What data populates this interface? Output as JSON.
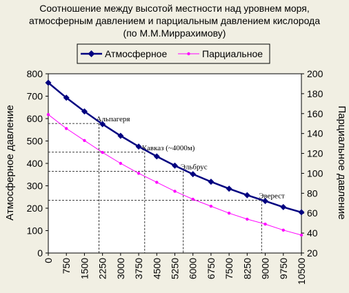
{
  "chart_data": {
    "type": "line",
    "title": "Соотношение между высотой местности над уровнем моря,",
    "subtitle_line2": "атмосферным давлением и парциальным давлением кислорода",
    "subtitle_line3": "(по М.М.Миррахимову)",
    "ylabel_left": "Атмосферное давление",
    "ylabel_right": "Парциальное давление",
    "xlabel": "",
    "x_ticks": [
      "0",
      "750",
      "1500",
      "2250",
      "3000",
      "3750",
      "4500",
      "5250",
      "6000",
      "6750",
      "7500",
      "8250",
      "9000",
      "9750",
      "10500"
    ],
    "y_left_ticks": [
      "0",
      "100",
      "200",
      "300",
      "400",
      "500",
      "600",
      "700",
      "800"
    ],
    "y_right_ticks": [
      "20",
      "40",
      "60",
      "80",
      "100",
      "120",
      "140",
      "160",
      "180",
      "200"
    ],
    "xlim": [
      0,
      10500
    ],
    "ylim_left": [
      0,
      800
    ],
    "ylim_right": [
      20,
      200
    ],
    "x": [
      0,
      750,
      1500,
      2250,
      3000,
      3750,
      4500,
      5250,
      6000,
      6750,
      7500,
      8250,
      9000,
      9750,
      10500
    ],
    "series": [
      {
        "name": "Атмосферное",
        "axis": "left",
        "color": "#000080",
        "marker": "diamond",
        "values": [
          760,
          693,
          632,
          575,
          523,
          475,
          431,
          390,
          352,
          318,
          287,
          258,
          232,
          205,
          182
        ]
      },
      {
        "name": "Парциальное",
        "axis": "right",
        "color": "#FF00FF",
        "marker": "dot",
        "values": [
          159,
          145,
          133,
          121,
          110,
          100,
          91,
          82,
          74,
          67,
          60,
          54,
          49,
          43,
          38
        ]
      }
    ],
    "annotations": [
      {
        "text": "Альпагеря",
        "x": 2100,
        "y": 578
      },
      {
        "text": "Кавказ (~4000м)",
        "x": 4000,
        "y": 450
      },
      {
        "text": "Эльбрус",
        "x": 5600,
        "y": 365
      },
      {
        "text": "Эверест",
        "x": 8848,
        "y": 235
      }
    ],
    "legend_position": "top",
    "grid": false
  }
}
